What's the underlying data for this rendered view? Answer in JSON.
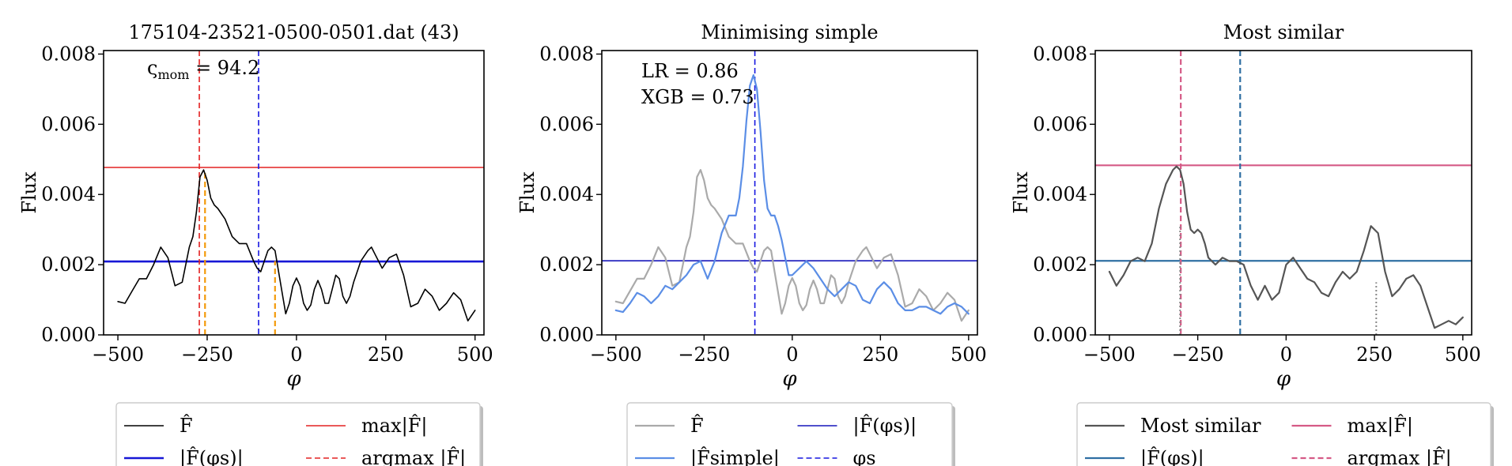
{
  "chart_data": [
    {
      "type": "line",
      "title": "175104-23521-0500-0501.dat (43)",
      "xlabel": "φ",
      "ylabel": "Flux",
      "xlim": [
        -540,
        525
      ],
      "ylim": [
        0.0,
        0.0081
      ],
      "xticks": [
        -500,
        -250,
        0,
        250,
        500
      ],
      "xtick_labels": [
        "−500",
        "−250",
        "0",
        "250",
        "500"
      ],
      "yticks": [
        0.0,
        0.002,
        0.004,
        0.006,
        0.008
      ],
      "ytick_labels": [
        "0.000",
        "0.002",
        "0.004",
        "0.006",
        "0.008"
      ],
      "annotation": {
        "text": "ς",
        "sub": "mom",
        "value": " = 94.2"
      },
      "series": [
        {
          "name": "F̂",
          "color": "#000000",
          "width": 1.6,
          "x": [
            -500,
            -480,
            -460,
            -440,
            -420,
            -400,
            -380,
            -360,
            -340,
            -320,
            -300,
            -290,
            -280,
            -270,
            -260,
            -250,
            -240,
            -230,
            -220,
            -200,
            -180,
            -160,
            -140,
            -120,
            -110,
            -100,
            -90,
            -80,
            -70,
            -60,
            -50,
            -40,
            -30,
            -20,
            -10,
            0,
            10,
            20,
            30,
            40,
            50,
            60,
            70,
            80,
            90,
            100,
            110,
            120,
            130,
            140,
            150,
            160,
            180,
            200,
            210,
            220,
            240,
            260,
            280,
            300,
            320,
            340,
            360,
            380,
            400,
            420,
            440,
            460,
            480,
            500
          ],
          "y": [
            0.00095,
            0.0009,
            0.00125,
            0.0016,
            0.0016,
            0.002,
            0.0025,
            0.0022,
            0.0014,
            0.0015,
            0.0025,
            0.0028,
            0.0035,
            0.0045,
            0.0047,
            0.0044,
            0.0039,
            0.0037,
            0.0036,
            0.0033,
            0.0028,
            0.0026,
            0.0026,
            0.0021,
            0.0019,
            0.0018,
            0.0021,
            0.0024,
            0.0025,
            0.0024,
            0.0018,
            0.0012,
            0.0006,
            0.0009,
            0.0014,
            0.00162,
            0.0014,
            0.0009,
            0.0007,
            0.00085,
            0.0013,
            0.00155,
            0.0013,
            0.0009,
            0.0009,
            0.0013,
            0.0017,
            0.0016,
            0.0011,
            0.0009,
            0.0011,
            0.0015,
            0.0021,
            0.0024,
            0.0025,
            0.0023,
            0.0019,
            0.0022,
            0.0023,
            0.0017,
            0.0008,
            0.0009,
            0.0013,
            0.0011,
            0.0007,
            0.0009,
            0.0012,
            0.001,
            0.0004,
            0.0007
          ]
        }
      ],
      "hlines": [
        {
          "y": 0.00477,
          "color": "#e32222",
          "style": "solid",
          "width": 1.6
        },
        {
          "y": 0.00209,
          "color": "#1717d6",
          "style": "solid",
          "width": 2.6
        }
      ],
      "vlines": [
        {
          "x": -272,
          "color": "#e32222",
          "style": "dashed",
          "width": 1.6
        },
        {
          "x": -106,
          "color": "#1717e0",
          "style": "dashed",
          "width": 1.6
        }
      ],
      "vsegments": [
        {
          "x": -256,
          "y0": 0.0,
          "y1": 0.0047,
          "color": "#f39a0a",
          "width": 2.2,
          "style": "dashed"
        },
        {
          "x": -60,
          "y0": 0.0,
          "y1": 0.0021,
          "color": "#f39a0a",
          "width": 2.2,
          "style": "dashed"
        }
      ],
      "legend": {
        "placement": "bottom",
        "items": [
          {
            "label": "F̂",
            "color": "#000000",
            "style": "solid",
            "width": 1.6
          },
          {
            "label": "max|F̂|",
            "color": "#e32222",
            "style": "solid",
            "width": 1.6
          },
          {
            "label": "|F̂(φs)|",
            "color": "#1717d6",
            "style": "solid",
            "width": 2.6
          },
          {
            "label": "argmax |F̂|",
            "color": "#e32222",
            "style": "dashed",
            "width": 1.6
          }
        ]
      }
    },
    {
      "type": "line",
      "title": "Minimising simple",
      "xlabel": "φ",
      "ylabel": "Flux",
      "xlim": [
        -540,
        525
      ],
      "ylim": [
        0.0,
        0.0081
      ],
      "xticks": [
        -500,
        -250,
        0,
        250,
        500
      ],
      "xtick_labels": [
        "−500",
        "−250",
        "0",
        "250",
        "500"
      ],
      "yticks": [
        0.0,
        0.002,
        0.004,
        0.006,
        0.008
      ],
      "ytick_labels": [
        "0.000",
        "0.002",
        "0.004",
        "0.006",
        "0.008"
      ],
      "annotation_lines": [
        "LR = 0.86",
        "XGB = 0.73"
      ],
      "series": [
        {
          "name": "F̂",
          "color": "#aaaaaa",
          "width": 2.2,
          "x": [
            -500,
            -480,
            -460,
            -440,
            -420,
            -400,
            -380,
            -360,
            -340,
            -320,
            -300,
            -290,
            -280,
            -270,
            -260,
            -250,
            -240,
            -230,
            -220,
            -200,
            -180,
            -160,
            -140,
            -120,
            -110,
            -100,
            -90,
            -80,
            -70,
            -60,
            -50,
            -40,
            -30,
            -20,
            -10,
            0,
            10,
            20,
            30,
            40,
            50,
            60,
            70,
            80,
            90,
            100,
            110,
            120,
            130,
            140,
            150,
            160,
            180,
            200,
            210,
            220,
            240,
            260,
            280,
            300,
            320,
            340,
            360,
            380,
            400,
            420,
            440,
            460,
            480,
            500
          ],
          "y": [
            0.00095,
            0.0009,
            0.00125,
            0.0016,
            0.0016,
            0.002,
            0.0025,
            0.0022,
            0.0014,
            0.0015,
            0.0025,
            0.0028,
            0.0035,
            0.0045,
            0.0047,
            0.0044,
            0.0039,
            0.0037,
            0.0036,
            0.0033,
            0.0028,
            0.0026,
            0.0026,
            0.0021,
            0.0019,
            0.0018,
            0.0021,
            0.0024,
            0.0025,
            0.0024,
            0.0018,
            0.0012,
            0.0006,
            0.0009,
            0.0014,
            0.00162,
            0.0014,
            0.0009,
            0.0007,
            0.00085,
            0.0013,
            0.00155,
            0.0013,
            0.0009,
            0.0009,
            0.0013,
            0.0017,
            0.0016,
            0.0011,
            0.0009,
            0.0011,
            0.0015,
            0.0021,
            0.0024,
            0.0025,
            0.0023,
            0.0019,
            0.0022,
            0.0023,
            0.0017,
            0.0008,
            0.0009,
            0.0013,
            0.0011,
            0.0007,
            0.0009,
            0.0012,
            0.001,
            0.0004,
            0.0007
          ]
        },
        {
          "name": "|F̂simple|",
          "color": "#5b8ee6",
          "width": 2.2,
          "x": [
            -500,
            -480,
            -460,
            -440,
            -420,
            -400,
            -380,
            -360,
            -340,
            -320,
            -300,
            -280,
            -260,
            -240,
            -220,
            -200,
            -180,
            -160,
            -150,
            -140,
            -130,
            -120,
            -110,
            -100,
            -90,
            -80,
            -70,
            -60,
            -50,
            -40,
            -30,
            -20,
            -10,
            0,
            20,
            40,
            60,
            80,
            100,
            120,
            140,
            160,
            180,
            200,
            220,
            240,
            260,
            280,
            300,
            320,
            340,
            360,
            380,
            400,
            420,
            440,
            460,
            480,
            500
          ],
          "y": [
            0.0007,
            0.00065,
            0.0009,
            0.0012,
            0.0011,
            0.0009,
            0.0011,
            0.0014,
            0.0013,
            0.0015,
            0.0017,
            0.002,
            0.0021,
            0.0016,
            0.0021,
            0.0029,
            0.0034,
            0.0034,
            0.0039,
            0.0048,
            0.0061,
            0.0071,
            0.0074,
            0.007,
            0.0058,
            0.0044,
            0.0036,
            0.0034,
            0.0034,
            0.0031,
            0.0027,
            0.0022,
            0.0017,
            0.0017,
            0.0019,
            0.0021,
            0.0019,
            0.0016,
            0.0013,
            0.0011,
            0.0013,
            0.0015,
            0.0014,
            0.001,
            0.0009,
            0.0013,
            0.0015,
            0.0013,
            0.0009,
            0.0007,
            0.0007,
            0.0008,
            0.0008,
            0.0007,
            0.0006,
            0.0008,
            0.0009,
            0.0008,
            0.0006
          ]
        }
      ],
      "hlines": [
        {
          "y": 0.00211,
          "color": "#1717bb",
          "style": "solid",
          "width": 1.6
        }
      ],
      "vlines": [
        {
          "x": -106,
          "color": "#1717e0",
          "style": "dashed",
          "width": 1.6
        }
      ],
      "vsegments": [],
      "legend": {
        "placement": "bottom",
        "items": [
          {
            "label": "F̂",
            "color": "#aaaaaa",
            "style": "solid",
            "width": 2.2
          },
          {
            "label": "|F̂(φs)|",
            "color": "#1717bb",
            "style": "solid",
            "width": 1.6
          },
          {
            "label": "|F̂simple|",
            "color": "#5b8ee6",
            "style": "solid",
            "width": 2.2
          },
          {
            "label": "φs",
            "color": "#1717e0",
            "style": "dashed",
            "width": 1.6
          }
        ]
      }
    },
    {
      "type": "line",
      "title": "Most similar",
      "xlabel": "φ",
      "ylabel": "Flux",
      "xlim": [
        -540,
        525
      ],
      "ylim": [
        0.0,
        0.0081
      ],
      "xticks": [
        -500,
        -250,
        0,
        250,
        500
      ],
      "xtick_labels": [
        "−500",
        "−250",
        "0",
        "250",
        "500"
      ],
      "yticks": [
        0.0,
        0.002,
        0.004,
        0.006,
        0.008
      ],
      "ytick_labels": [
        "0.000",
        "0.002",
        "0.004",
        "0.006",
        "0.008"
      ],
      "series": [
        {
          "name": "Most similar",
          "color": "#555555",
          "width": 2.2,
          "x": [
            -500,
            -480,
            -460,
            -440,
            -420,
            -400,
            -380,
            -360,
            -340,
            -320,
            -310,
            -300,
            -290,
            -280,
            -270,
            -260,
            -250,
            -240,
            -230,
            -220,
            -200,
            -180,
            -160,
            -140,
            -120,
            -100,
            -80,
            -60,
            -40,
            -20,
            0,
            20,
            40,
            60,
            80,
            100,
            120,
            140,
            160,
            180,
            200,
            220,
            240,
            260,
            280,
            300,
            320,
            340,
            360,
            380,
            400,
            420,
            440,
            460,
            480,
            500
          ],
          "y": [
            0.0018,
            0.0014,
            0.0017,
            0.0021,
            0.0022,
            0.0021,
            0.0026,
            0.0036,
            0.0043,
            0.0047,
            0.0048,
            0.0047,
            0.0043,
            0.0035,
            0.003,
            0.0029,
            0.003,
            0.0029,
            0.0026,
            0.0022,
            0.002,
            0.0022,
            0.0021,
            0.0021,
            0.002,
            0.0014,
            0.001,
            0.0014,
            0.001,
            0.0012,
            0.002,
            0.0022,
            0.0019,
            0.0016,
            0.0015,
            0.0012,
            0.0011,
            0.0015,
            0.0018,
            0.0016,
            0.0018,
            0.0024,
            0.0031,
            0.0029,
            0.0018,
            0.0011,
            0.0013,
            0.0016,
            0.0017,
            0.0014,
            0.0008,
            0.0002,
            0.0003,
            0.0004,
            0.0003,
            0.0005
          ]
        }
      ],
      "hlines": [
        {
          "y": 0.00483,
          "color": "#d55a86",
          "style": "solid",
          "width": 2.2
        },
        {
          "y": 0.00211,
          "color": "#2f6fa3",
          "style": "solid",
          "width": 2.2
        }
      ],
      "vlines": [
        {
          "x": -298,
          "color": "#d55a86",
          "style": "dashed",
          "width": 2.2
        },
        {
          "x": -130,
          "color": "#2f6fa3",
          "style": "dashed",
          "width": 2.2
        }
      ],
      "vsegments": [
        {
          "x": -300,
          "y0": 0.0,
          "y1": 0.0031,
          "color": "#888888",
          "width": 2.0,
          "style": "dotted"
        },
        {
          "x": 255,
          "y0": 0.0,
          "y1": 0.0015,
          "color": "#888888",
          "width": 2.0,
          "style": "dotted"
        }
      ],
      "legend": {
        "placement": "bottom",
        "items": [
          {
            "label": "Most similar",
            "color": "#555555",
            "style": "solid",
            "width": 2.2
          },
          {
            "label": "max|F̂|",
            "color": "#d55a86",
            "style": "solid",
            "width": 2.2
          },
          {
            "label": "|F̂(φs)|",
            "color": "#2f6fa3",
            "style": "solid",
            "width": 2.2
          },
          {
            "label": "argmax |F̂|",
            "color": "#d55a86",
            "style": "dashed",
            "width": 2.2
          }
        ]
      }
    }
  ]
}
